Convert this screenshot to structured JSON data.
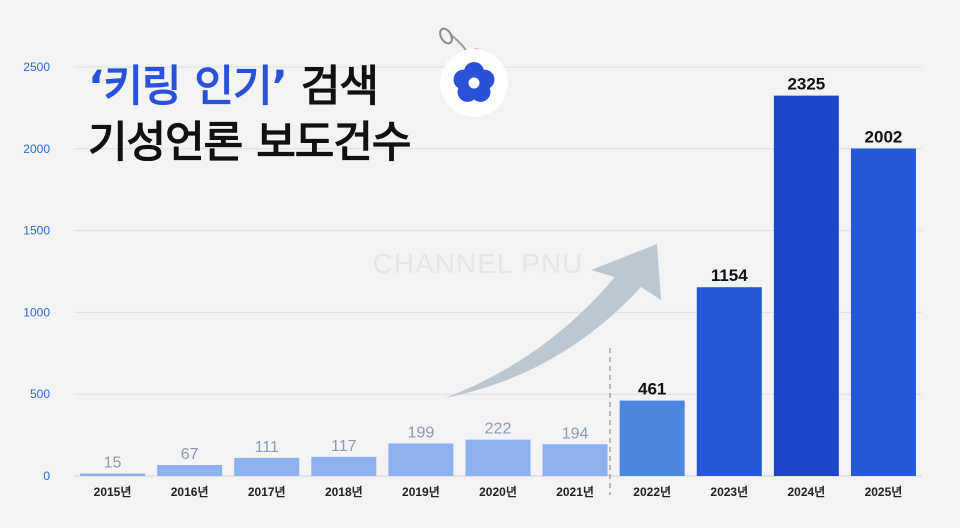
{
  "title": {
    "line1_accent": "‘키링 인기’",
    "line1_rest": "검색",
    "line2": "기성언론 보도건수"
  },
  "watermark": "CHANNEL PNU",
  "colors": {
    "accent": "#2952d9",
    "bar_light": "#8db1ef",
    "bar_mid": "#4b86e3",
    "bar_dark": "#2458d6",
    "bar_peak": "#1d46cf",
    "arrow": "#bcc7d2",
    "axis_tick": "#2a6bd3"
  },
  "chart_data": {
    "type": "bar",
    "categories": [
      "2015년",
      "2016년",
      "2017년",
      "2018년",
      "2019년",
      "2020년",
      "2021년",
      "2022년",
      "2023년",
      "2024년",
      "2025년"
    ],
    "values": [
      15,
      67,
      111,
      117,
      199,
      222,
      194,
      461,
      1154,
      2325,
      2002
    ],
    "data_labels": [
      "15",
      "67",
      "111",
      "117",
      "199",
      "222",
      "194",
      "461",
      "1154",
      "2325",
      "2002"
    ],
    "ylim": [
      0,
      2500
    ],
    "yticks": [
      0,
      500,
      1000,
      1500,
      2000,
      2500
    ],
    "ytick_labels": [
      "0",
      "500",
      "1000",
      "1500",
      "2000",
      "2500"
    ],
    "grid": true,
    "legend": "none",
    "divider_after_category": "2021년"
  }
}
